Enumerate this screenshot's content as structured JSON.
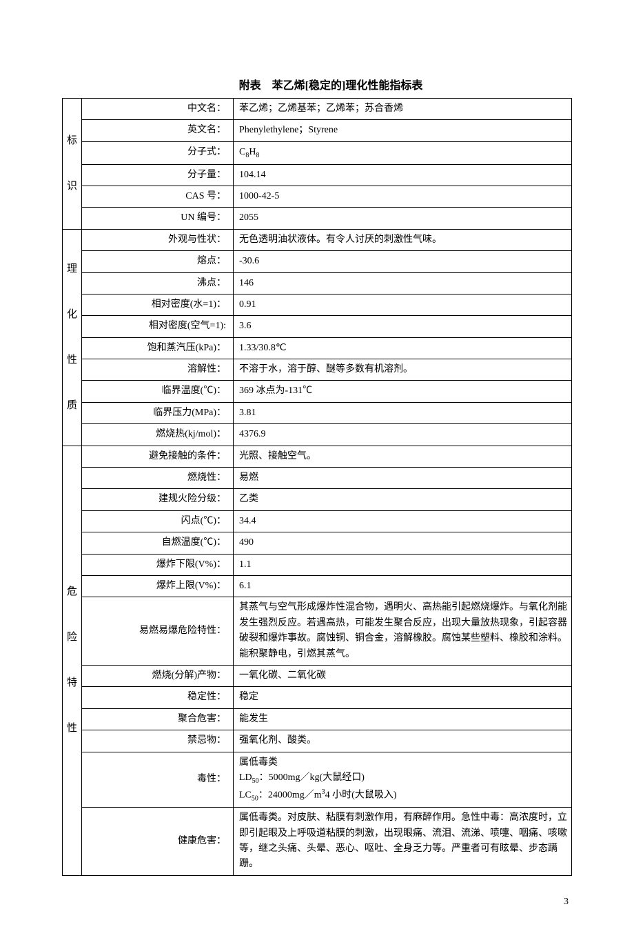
{
  "title": "附表　苯乙烯[稳定的]理化性能指标表",
  "page_number": "3",
  "sections": [
    {
      "category": "标识",
      "rows": [
        {
          "label": "中文名：",
          "value": "苯乙烯；乙烯基苯；乙烯苯；苏合香烯"
        },
        {
          "label": "英文名：",
          "value": "Phenylethylene；Styrene"
        },
        {
          "label": "分子式：",
          "value_html": "C<sub>8</sub>H<sub>8</sub>"
        },
        {
          "label": "分子量：",
          "value": "104.14"
        },
        {
          "label": "CAS 号：",
          "value": "1000-42-5"
        },
        {
          "label": "UN 编号：",
          "value": "2055"
        }
      ]
    },
    {
      "category": "理化性质",
      "rows": [
        {
          "label": "外观与性状：",
          "value": "无色透明油状液体。有令人讨厌的刺激性气味。"
        },
        {
          "label": "熔点：",
          "value": "-30.6"
        },
        {
          "label": "沸点：",
          "value": "146"
        },
        {
          "label": "相对密度(水=1)：",
          "value": "0.91"
        },
        {
          "label": "相对密度(空气=1):",
          "value": "3.6"
        },
        {
          "label": "饱和蒸汽压(kPa)：",
          "value": "1.33/30.8℃"
        },
        {
          "label": "溶解性：",
          "value": "不溶于水，溶于醇、醚等多数有机溶剂。"
        },
        {
          "label": "临界温度(℃)：",
          "value": "369 冰点为-131℃"
        },
        {
          "label": "临界压力(MPa)：",
          "value": "3.81"
        },
        {
          "label": "燃烧热(kj/mol)：",
          "value": "4376.9"
        }
      ]
    },
    {
      "category": "危险特性",
      "rows": [
        {
          "label": "避免接触的条件：",
          "value": "光照、接触空气。"
        },
        {
          "label": "燃烧性：",
          "value": "易燃"
        },
        {
          "label": "建规火险分级：",
          "value": "乙类"
        },
        {
          "label": "闪点(℃)：",
          "value": "34.4"
        },
        {
          "label": "自燃温度(℃)：",
          "value": "490"
        },
        {
          "label": "爆炸下限(V%)：",
          "value": "1.1"
        },
        {
          "label": "爆炸上限(V%)：",
          "value": "6.1"
        },
        {
          "label": "易燃易爆危险特性：",
          "value": "其蒸气与空气形成爆炸性混合物，遇明火、高热能引起燃烧爆炸。与氧化剂能发生强烈反应。若遇高热，可能发生聚合反应，出现大量放热现象，引起容器破裂和爆炸事故。腐蚀铜、铜合金，溶解橡胶。腐蚀某些塑料、橡胶和涂料。能积聚静电，引燃其蒸气。"
        },
        {
          "label": "燃烧(分解)产物：",
          "value": "一氧化碳、二氧化碳"
        },
        {
          "label": "稳定性：",
          "value": "稳定"
        },
        {
          "label": "聚合危害：",
          "value": "能发生"
        },
        {
          "label": "禁忌物：",
          "value": "强氧化剂、酸类。"
        },
        {
          "label": "毒性：",
          "value_html": "属低毒类<br>LD<sub>50</sub>：5000mg／kg(大鼠经口)<br>LC<sub>50</sub>：24000mg／m<sup>3</sup>4 小时(大鼠吸入)"
        },
        {
          "label": "健康危害：",
          "value": "属低毒类。对皮肤、粘膜有刺激作用，有麻醉作用。急性中毒：高浓度时，立即引起眼及上呼吸道粘膜的刺激，出现眼痛、流泪、流涕、喷嚏、咽痛、咳嗽等，继之头痛、头晕、恶心、呕吐、全身乏力等。严重者可有眩晕、步态蹒跚。"
        }
      ]
    }
  ]
}
